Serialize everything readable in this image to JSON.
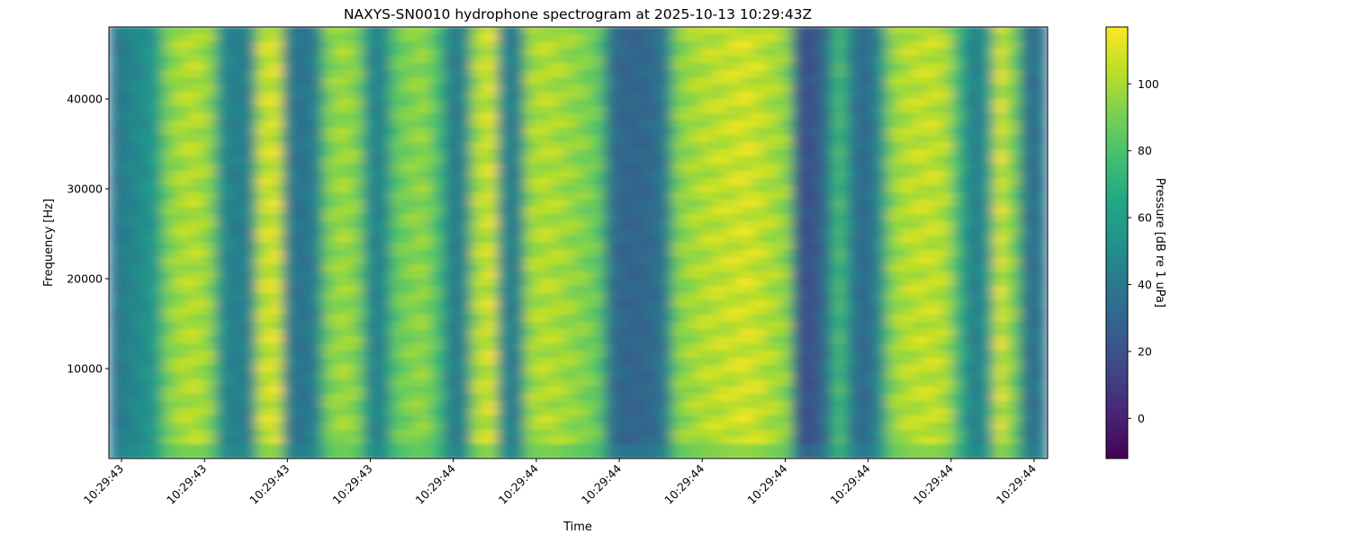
{
  "chart_data": {
    "type": "heatmap",
    "title": "NAXYS-SN0010 hydrophone spectrogram at 2025-10-13 10:29:43Z",
    "xlabel": "Time",
    "ylabel": "Frequency [Hz]",
    "colorbar_label": "Pressure [dB re 1 uPa]",
    "colormap": "viridis",
    "colormap_stops": [
      "#440154",
      "#482475",
      "#414487",
      "#355f8d",
      "#2a788e",
      "#21918c",
      "#22a884",
      "#44bf70",
      "#7ad151",
      "#bddf26",
      "#fde725"
    ],
    "ylim": [
      0,
      48000
    ],
    "yticks": [
      10000,
      20000,
      30000,
      40000
    ],
    "ytick_labels": [
      "10000",
      "20000",
      "30000",
      "40000"
    ],
    "xtick_labels": [
      "10:29:43",
      "10:29:43",
      "10:29:43",
      "10:29:43",
      "10:29:44",
      "10:29:44",
      "10:29:44",
      "10:29:44",
      "10:29:44",
      "10:29:44",
      "10:29:44",
      "10:29:44"
    ],
    "clim": [
      -12,
      117
    ],
    "colorbar_ticks": [
      0,
      20,
      40,
      60,
      80,
      100
    ],
    "colorbar_tick_labels": [
      "0",
      "20",
      "40",
      "60",
      "80",
      "100"
    ],
    "time_profile_db": [
      38,
      45,
      50,
      58,
      92,
      100,
      102,
      95,
      50,
      42,
      45,
      105,
      108,
      40,
      36,
      45,
      92,
      98,
      92,
      48,
      45,
      85,
      92,
      95,
      80,
      42,
      45,
      100,
      108,
      45,
      42,
      98,
      102,
      100,
      96,
      92,
      85,
      35,
      30,
      30,
      32,
      40,
      92,
      98,
      102,
      104,
      106,
      108,
      105,
      100,
      95,
      22,
      20,
      35,
      78,
      40,
      30,
      50,
      95,
      102,
      104,
      105,
      100,
      70,
      40,
      55,
      108,
      90,
      35,
      38
    ]
  }
}
